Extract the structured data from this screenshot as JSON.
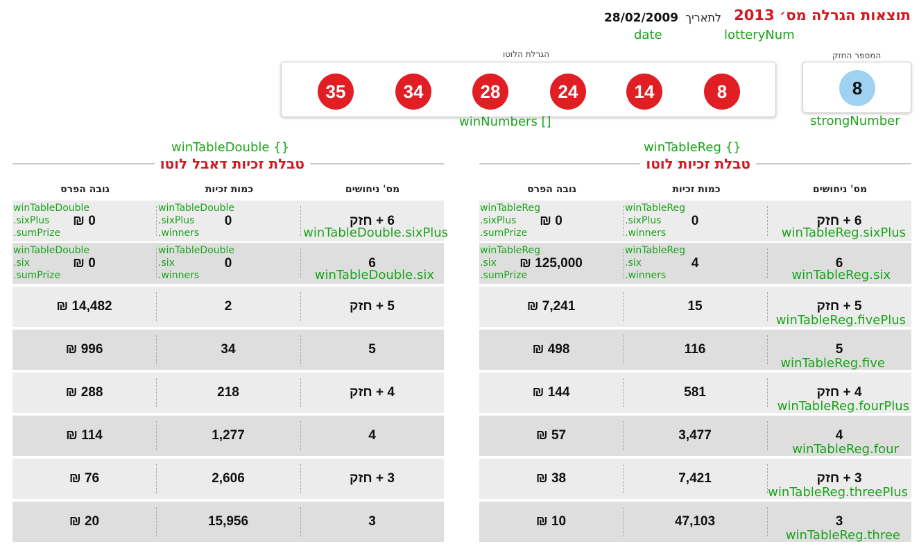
{
  "header": {
    "title": "תוצאות הגרלה מס׳ 2013",
    "date_label": "לתאריך",
    "date_value": "28/02/2009",
    "lottery_num_anno": "lotteryNum",
    "date_anno": "date"
  },
  "draw": {
    "balls_caption": "הגרלת הלוטו",
    "strong_caption": "המספר החזק",
    "numbers": [
      "35",
      "34",
      "28",
      "24",
      "14",
      "8"
    ],
    "strong_number": "8",
    "win_numbers_anno": "winNumbers []",
    "strong_number_anno": "strongNumber"
  },
  "colors": {
    "brand_red": "#d4181f",
    "ball_red": "#e01e24",
    "strong_blue": "#9ed2f0",
    "anno_green": "#1aa31a"
  },
  "table_reg": {
    "anno": "winTableReg {}",
    "title": "טבלת זכיות לוטו",
    "col_guesses": "מס' ניחושים",
    "col_winners": "כמות זכיות",
    "col_prize": "גובה הפרס",
    "rows": [
      {
        "guesses": "6 + חזק",
        "winners": "0",
        "prize": "0 ₪",
        "anno": "winTableReg.sixPlus",
        "winners_note": [
          "winTableReg",
          ".sixPlus",
          ".winners"
        ],
        "prize_note": [
          "winTableReg",
          ".sixPlus",
          ".sumPrize"
        ]
      },
      {
        "guesses": "6",
        "winners": "4",
        "prize": "125,000 ₪",
        "anno": "winTableReg.six",
        "winners_note": [
          "winTableReg",
          ".six",
          ".winners"
        ],
        "prize_note": [
          "winTableReg",
          ".six",
          ".sumPrize"
        ]
      },
      {
        "guesses": "5 + חזק",
        "winners": "15",
        "prize": "7,241 ₪",
        "anno": "winTableReg.fivePlus"
      },
      {
        "guesses": "5",
        "winners": "116",
        "prize": "498 ₪",
        "anno": "winTableReg.five"
      },
      {
        "guesses": "4 + חזק",
        "winners": "581",
        "prize": "144 ₪",
        "anno": "winTableReg.fourPlus"
      },
      {
        "guesses": "4",
        "winners": "3,477",
        "prize": "57 ₪",
        "anno": "winTableReg.four"
      },
      {
        "guesses": "3 + חזק",
        "winners": "7,421",
        "prize": "38 ₪",
        "anno": "winTableReg.threePlus"
      },
      {
        "guesses": "3",
        "winners": "47,103",
        "prize": "10 ₪",
        "anno": "winTableReg.three"
      }
    ]
  },
  "table_double": {
    "anno": "winTableDouble {}",
    "title": "טבלת זכיות דאבל לוטו",
    "col_guesses": "מס' ניחושים",
    "col_winners": "כמות זכיות",
    "col_prize": "גובה הפרס",
    "rows": [
      {
        "guesses": "6 + חזק",
        "winners": "0",
        "prize": "0 ₪",
        "anno": "winTableDouble.sixPlus",
        "winners_note": [
          "winTableDouble",
          ".sixPlus",
          ".winners"
        ],
        "prize_note": [
          "winTableDouble",
          ".sixPlus",
          ".sumPrize"
        ]
      },
      {
        "guesses": "6",
        "winners": "0",
        "prize": "0 ₪",
        "anno": "winTableDouble.six",
        "winners_note": [
          "winTableDouble",
          ".six",
          ".winners"
        ],
        "prize_note": [
          "winTableDouble",
          ".six",
          ".sumPrize"
        ]
      },
      {
        "guesses": "5 + חזק",
        "winners": "2",
        "prize": "14,482 ₪"
      },
      {
        "guesses": "5",
        "winners": "34",
        "prize": "996 ₪"
      },
      {
        "guesses": "4 + חזק",
        "winners": "218",
        "prize": "288 ₪"
      },
      {
        "guesses": "4",
        "winners": "1,277",
        "prize": "114 ₪"
      },
      {
        "guesses": "3 + חזק",
        "winners": "2,606",
        "prize": "76 ₪"
      },
      {
        "guesses": "3",
        "winners": "15,956",
        "prize": "20 ₪"
      }
    ]
  }
}
